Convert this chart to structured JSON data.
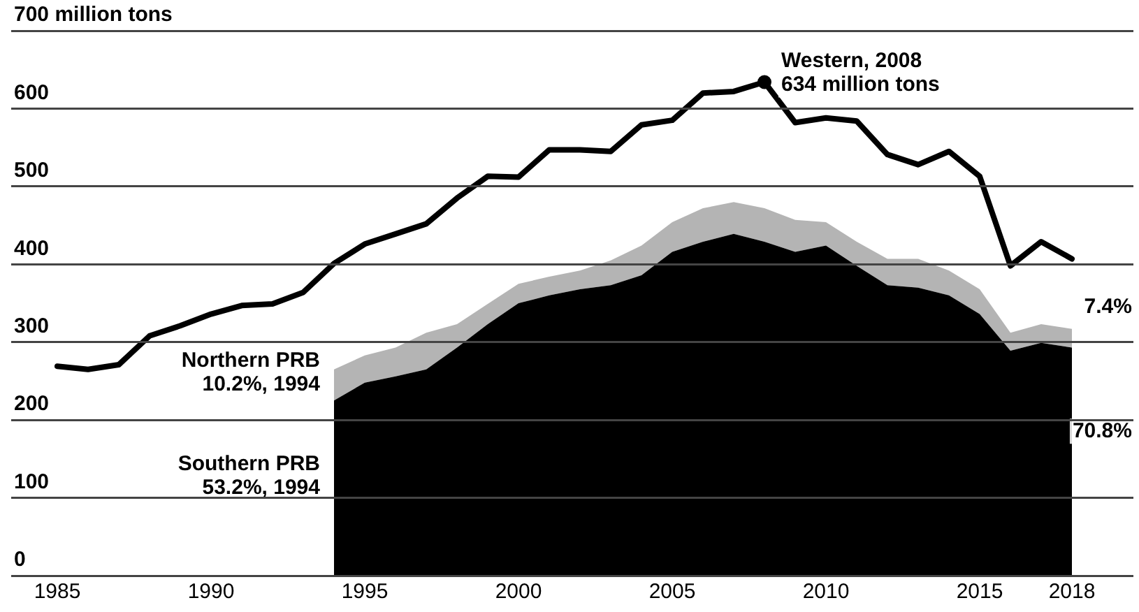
{
  "chart_data": {
    "type": "area",
    "stacked": true,
    "grid": "y",
    "legend": false,
    "xlim": [
      1983.5,
      2020
    ],
    "xticks": [
      1985,
      1990,
      1995,
      2000,
      2005,
      2010,
      2015,
      2018
    ],
    "ylim": [
      0,
      700
    ],
    "yticks": [
      0,
      100,
      200,
      300,
      400,
      500,
      600,
      {
        "value": 700,
        "label": "700 million tons"
      }
    ],
    "series": [
      {
        "name": "Southern PRB",
        "type": "area",
        "color": "#000000",
        "x": [
          1994,
          1995,
          1996,
          1997,
          1998,
          1999,
          2000,
          2001,
          2002,
          2003,
          2004,
          2005,
          2006,
          2007,
          2008,
          2009,
          2010,
          2011,
          2012,
          2013,
          2014,
          2015,
          2016,
          2017,
          2018
        ],
        "values": [
          225,
          248,
          256,
          265,
          293,
          323,
          350,
          360,
          368,
          373,
          386,
          416,
          429,
          439,
          429,
          416,
          424,
          398,
          373,
          370,
          360,
          336,
          289,
          299,
          293
        ]
      },
      {
        "name": "Northern PRB",
        "type": "area",
        "color": "#b4b4b4",
        "x": [
          1994,
          1995,
          1996,
          1997,
          1998,
          1999,
          2000,
          2001,
          2002,
          2003,
          2004,
          2005,
          2006,
          2007,
          2008,
          2009,
          2010,
          2011,
          2012,
          2013,
          2014,
          2015,
          2016,
          2017,
          2018
        ],
        "values": [
          40,
          35,
          37,
          47,
          30,
          26,
          25,
          24,
          24,
          32,
          38,
          38,
          43,
          41,
          43,
          41,
          30,
          31,
          34,
          37,
          32,
          32,
          23,
          24,
          24
        ]
      },
      {
        "type": "line",
        "color": "#000000",
        "x": [
          1985,
          1986,
          1987,
          1988,
          1989,
          1990,
          1991,
          1992,
          1993,
          1994,
          1995,
          1996,
          1997,
          1998,
          1999,
          2000,
          2001,
          2002,
          2003,
          2004,
          2005,
          2006,
          2007,
          2008,
          2009,
          2010,
          2011,
          2012,
          2013,
          2014,
          2015,
          2016,
          2017,
          2018
        ],
        "values": [
          269,
          265,
          271,
          308,
          321,
          336,
          347,
          349,
          364,
          401,
          426,
          439,
          452,
          485,
          513,
          512,
          547,
          547,
          545,
          579,
          585,
          620,
          622,
          634,
          582,
          588,
          584,
          541,
          528,
          545,
          513,
          398,
          429,
          407
        ]
      }
    ],
    "annotations": [
      {
        "text": "Western, 2008\n634 million tons",
        "x": 2008,
        "y": 634
      },
      {
        "text": "10.2%, 1994",
        "x": 1994,
        "y": 245
      },
      {
        "text": "53.2%, 1994",
        "x": 1994,
        "y": 112
      },
      {
        "text": "7.4%",
        "x": 2018,
        "y": 305
      },
      {
        "text": "70.8%",
        "x": 2018,
        "y": 146
      }
    ]
  }
}
